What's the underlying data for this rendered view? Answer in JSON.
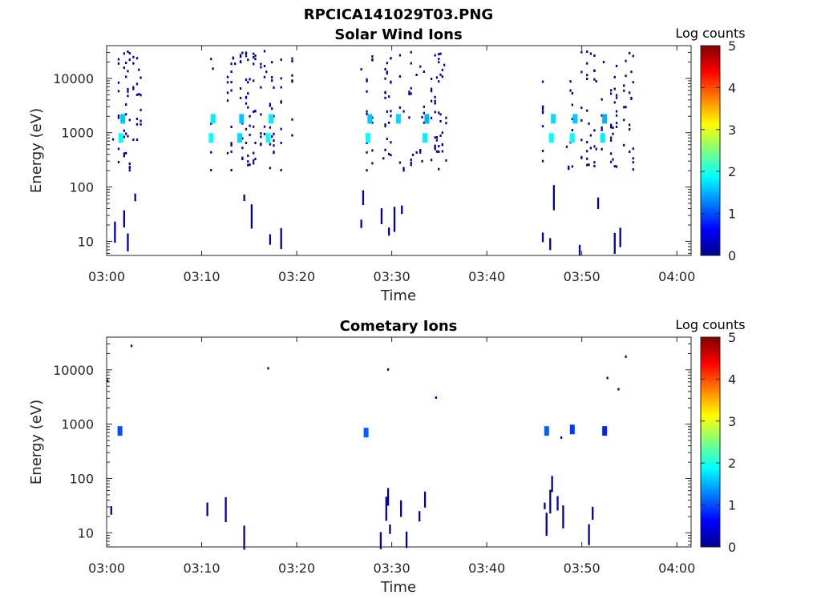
{
  "title": "RPCICA141029T03.PNG",
  "chart_data": [
    {
      "type": "heatmap",
      "title": "Solar Wind Ions",
      "xlabel": "Time",
      "ylabel": "Energy (eV)",
      "xticks": [
        "03:00",
        "03:10",
        "03:20",
        "03:30",
        "03:40",
        "03:50",
        "04:00"
      ],
      "yticks": [
        "10",
        "100",
        "1000",
        "10000"
      ],
      "yscale": "log",
      "ylim": [
        5.5,
        40000
      ],
      "xlim_minutes": [
        0,
        61.5
      ],
      "colorbar": {
        "label": "Log counts",
        "ticks": [
          "0",
          "1",
          "2",
          "3",
          "4",
          "5"
        ],
        "range": [
          0,
          5
        ]
      },
      "bursts_minutes": [
        [
          0.0,
          4.0
        ],
        [
          10.7,
          20.0
        ],
        [
          26.7,
          35.8
        ],
        [
          45.8,
          55.5
        ]
      ],
      "peaks": [
        {
          "minute": 1.5,
          "energy_eV": 800,
          "log_counts": 1.9
        },
        {
          "minute": 1.7,
          "energy_eV": 1800,
          "log_counts": 1.6
        },
        {
          "minute": 11.0,
          "energy_eV": 800,
          "log_counts": 1.9
        },
        {
          "minute": 11.2,
          "energy_eV": 1800,
          "log_counts": 1.8
        },
        {
          "minute": 14.2,
          "energy_eV": 1800,
          "log_counts": 1.6
        },
        {
          "minute": 14.0,
          "energy_eV": 800,
          "log_counts": 1.7
        },
        {
          "minute": 17.3,
          "energy_eV": 1800,
          "log_counts": 1.8
        },
        {
          "minute": 17.0,
          "energy_eV": 800,
          "log_counts": 1.9
        },
        {
          "minute": 27.5,
          "energy_eV": 800,
          "log_counts": 1.9
        },
        {
          "minute": 27.7,
          "energy_eV": 1800,
          "log_counts": 1.6
        },
        {
          "minute": 30.7,
          "energy_eV": 1800,
          "log_counts": 1.7
        },
        {
          "minute": 33.5,
          "energy_eV": 800,
          "log_counts": 1.8
        },
        {
          "minute": 33.7,
          "energy_eV": 1800,
          "log_counts": 1.5
        },
        {
          "minute": 46.8,
          "energy_eV": 800,
          "log_counts": 1.9
        },
        {
          "minute": 47.0,
          "energy_eV": 1800,
          "log_counts": 1.7
        },
        {
          "minute": 49.0,
          "energy_eV": 800,
          "log_counts": 1.9
        },
        {
          "minute": 49.3,
          "energy_eV": 1800,
          "log_counts": 1.6
        },
        {
          "minute": 52.2,
          "energy_eV": 800,
          "log_counts": 1.8
        },
        {
          "minute": 52.4,
          "energy_eV": 1800,
          "log_counts": 1.5
        }
      ]
    },
    {
      "type": "heatmap",
      "title": "Cometary Ions",
      "xlabel": "Time",
      "ylabel": "Energy (eV)",
      "xticks": [
        "03:00",
        "03:10",
        "03:20",
        "03:30",
        "03:40",
        "03:50",
        "04:00"
      ],
      "yticks": [
        "10",
        "100",
        "1000",
        "10000"
      ],
      "yscale": "log",
      "ylim": [
        5.5,
        40000
      ],
      "xlim_minutes": [
        0,
        61.5
      ],
      "colorbar": {
        "label": "Log counts",
        "ticks": [
          "0",
          "1",
          "2",
          "3",
          "4",
          "5"
        ],
        "range": [
          0,
          5
        ]
      },
      "bursts_minutes": [
        [
          0.0,
          3.5
        ],
        [
          10.5,
          20.0
        ],
        [
          27.0,
          35.5
        ],
        [
          46.0,
          55.0
        ]
      ],
      "peaks": [
        {
          "minute": 1.4,
          "energy_eV": 750,
          "log_counts": 1.0
        },
        {
          "minute": 27.3,
          "energy_eV": 700,
          "log_counts": 1.1
        },
        {
          "minute": 46.3,
          "energy_eV": 750,
          "log_counts": 1.1
        },
        {
          "minute": 49.0,
          "energy_eV": 800,
          "log_counts": 0.9
        },
        {
          "minute": 52.4,
          "energy_eV": 750,
          "log_counts": 0.8
        }
      ]
    }
  ]
}
